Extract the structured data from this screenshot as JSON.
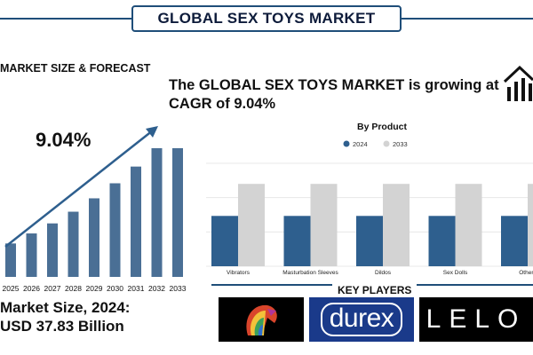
{
  "title": "GLOBAL SEX TOYS MARKET",
  "section_label": "MARKET SIZE & FORECAST",
  "headline": "The GLOBAL SEX TOYS MARKET is growing at CAGR of 9.04%",
  "cagr": "9.04%",
  "market_size_line1": "Market Size, 2024:",
  "market_size_line2": "USD 37.83 Billion",
  "key_players_label": "KEY PLAYERS",
  "key_players": [
    {
      "name": "brand-emblem-logo",
      "text": ""
    },
    {
      "name": "durex-logo",
      "text": "durex"
    },
    {
      "name": "lelo-logo",
      "text": "LELO"
    }
  ],
  "colors": {
    "accent": "#1f4e79",
    "bar_2024": "#2e5f8e",
    "bar_2033": "#d3d3d3",
    "forecast_bar": "#4a6f95",
    "durex_bg": "#1a3a8a"
  },
  "chart_data": [
    {
      "type": "bar",
      "title": "",
      "categories": [
        "2025",
        "2026",
        "2027",
        "2028",
        "2029",
        "2030",
        "2031",
        "2032",
        "2033"
      ],
      "values": [
        1.0,
        1.3,
        1.6,
        1.95,
        2.35,
        2.8,
        3.3,
        3.85,
        3.85
      ],
      "xlabel": "",
      "ylabel": "",
      "ylim": [
        0,
        4.3
      ],
      "grid": false,
      "annotation": "9.04%",
      "trend_arrow": true
    },
    {
      "type": "bar",
      "title": "By Product",
      "categories": [
        "Vibrators",
        "Masturbation Sleeves",
        "Dildos",
        "Sex Dolls",
        "Others"
      ],
      "series": [
        {
          "name": "2024",
          "values": [
            22,
            22,
            22,
            22,
            22
          ]
        },
        {
          "name": "2033",
          "values": [
            36,
            36,
            36,
            36,
            36
          ]
        }
      ],
      "ylim": [
        0,
        45
      ],
      "grid": true,
      "legend": "top-center"
    }
  ]
}
